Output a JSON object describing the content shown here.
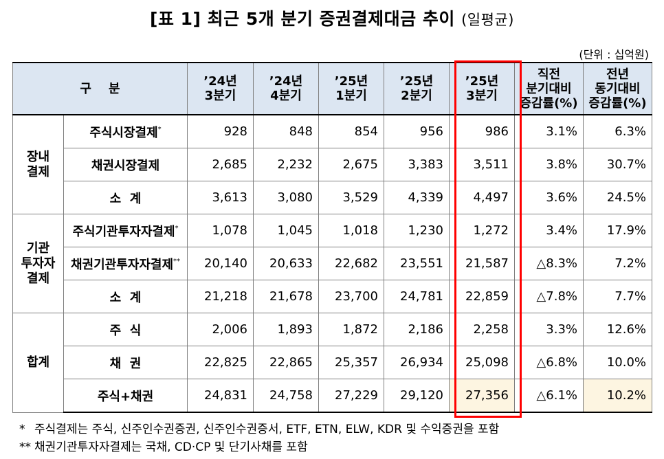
{
  "title": {
    "main": "[표 1] 최근 5개 분기 증권결제대금 추이",
    "sub": "(일평균)"
  },
  "unit": "(단위 : 십억원)",
  "table": {
    "headers": {
      "category": "구    분",
      "c1": "’24년\n3분기",
      "c2": "’24년\n4분기",
      "c3": "’25년\n1분기",
      "c4": "’25년\n2분기",
      "c5": "’25년\n3분기",
      "c6": "직전\n분기대비\n증감률(%)",
      "c7": "전년\n동기대비\n증감률(%)"
    },
    "groups": {
      "g1": "장내\n결제",
      "g2": "기관\n투자자\n결제",
      "g3": "합계"
    },
    "rows": [
      {
        "label": "주식시장결제",
        "mark": "*",
        "values": [
          "928",
          "848",
          "854",
          "956",
          "986",
          "3.1%",
          "6.3%"
        ]
      },
      {
        "label": "채권시장결제",
        "mark": "",
        "values": [
          "2,685",
          "2,232",
          "2,675",
          "3,383",
          "3,511",
          "3.8%",
          "30.7%"
        ]
      },
      {
        "label": "소  계",
        "mark": "",
        "values": [
          "3,613",
          "3,080",
          "3,529",
          "4,339",
          "4,497",
          "3.6%",
          "24.5%"
        ]
      },
      {
        "label": "주식기관투자자결제",
        "mark": "*",
        "values": [
          "1,078",
          "1,045",
          "1,018",
          "1,230",
          "1,272",
          "3.4%",
          "17.9%"
        ]
      },
      {
        "label": "채권기관투자자결제",
        "mark": "**",
        "values": [
          "20,140",
          "20,633",
          "22,682",
          "23,551",
          "21,587",
          "△8.3%",
          "7.2%"
        ]
      },
      {
        "label": "소  계",
        "mark": "",
        "values": [
          "21,218",
          "21,678",
          "23,700",
          "24,781",
          "22,859",
          "△7.8%",
          "7.7%"
        ]
      },
      {
        "label": "주  식",
        "mark": "",
        "values": [
          "2,006",
          "1,893",
          "1,872",
          "2,186",
          "2,258",
          "3.3%",
          "12.6%"
        ]
      },
      {
        "label": "채  권",
        "mark": "",
        "values": [
          "22,825",
          "22,865",
          "25,357",
          "26,934",
          "25,098",
          "△6.8%",
          "10.0%"
        ]
      },
      {
        "label": "주식+채권",
        "mark": "",
        "values": [
          "24,831",
          "24,758",
          "27,229",
          "29,120",
          "27,356",
          "△6.1%",
          "10.2%"
        ]
      }
    ]
  },
  "notes": [
    {
      "mark": "*",
      "text": "주식결제는 주식, 신주인수권증권, 신주인수권증서, ETF, ETN, ELW, KDR 및 수익증권을 포함"
    },
    {
      "mark": "**",
      "text": "채권기관투자자결제는 국채, CD·CP 및 단기사채를 포함"
    }
  ],
  "colors": {
    "header_bg": "#dce6f2",
    "highlight_bg": "#fdf5e1",
    "highlight_border": "#ff0000"
  }
}
